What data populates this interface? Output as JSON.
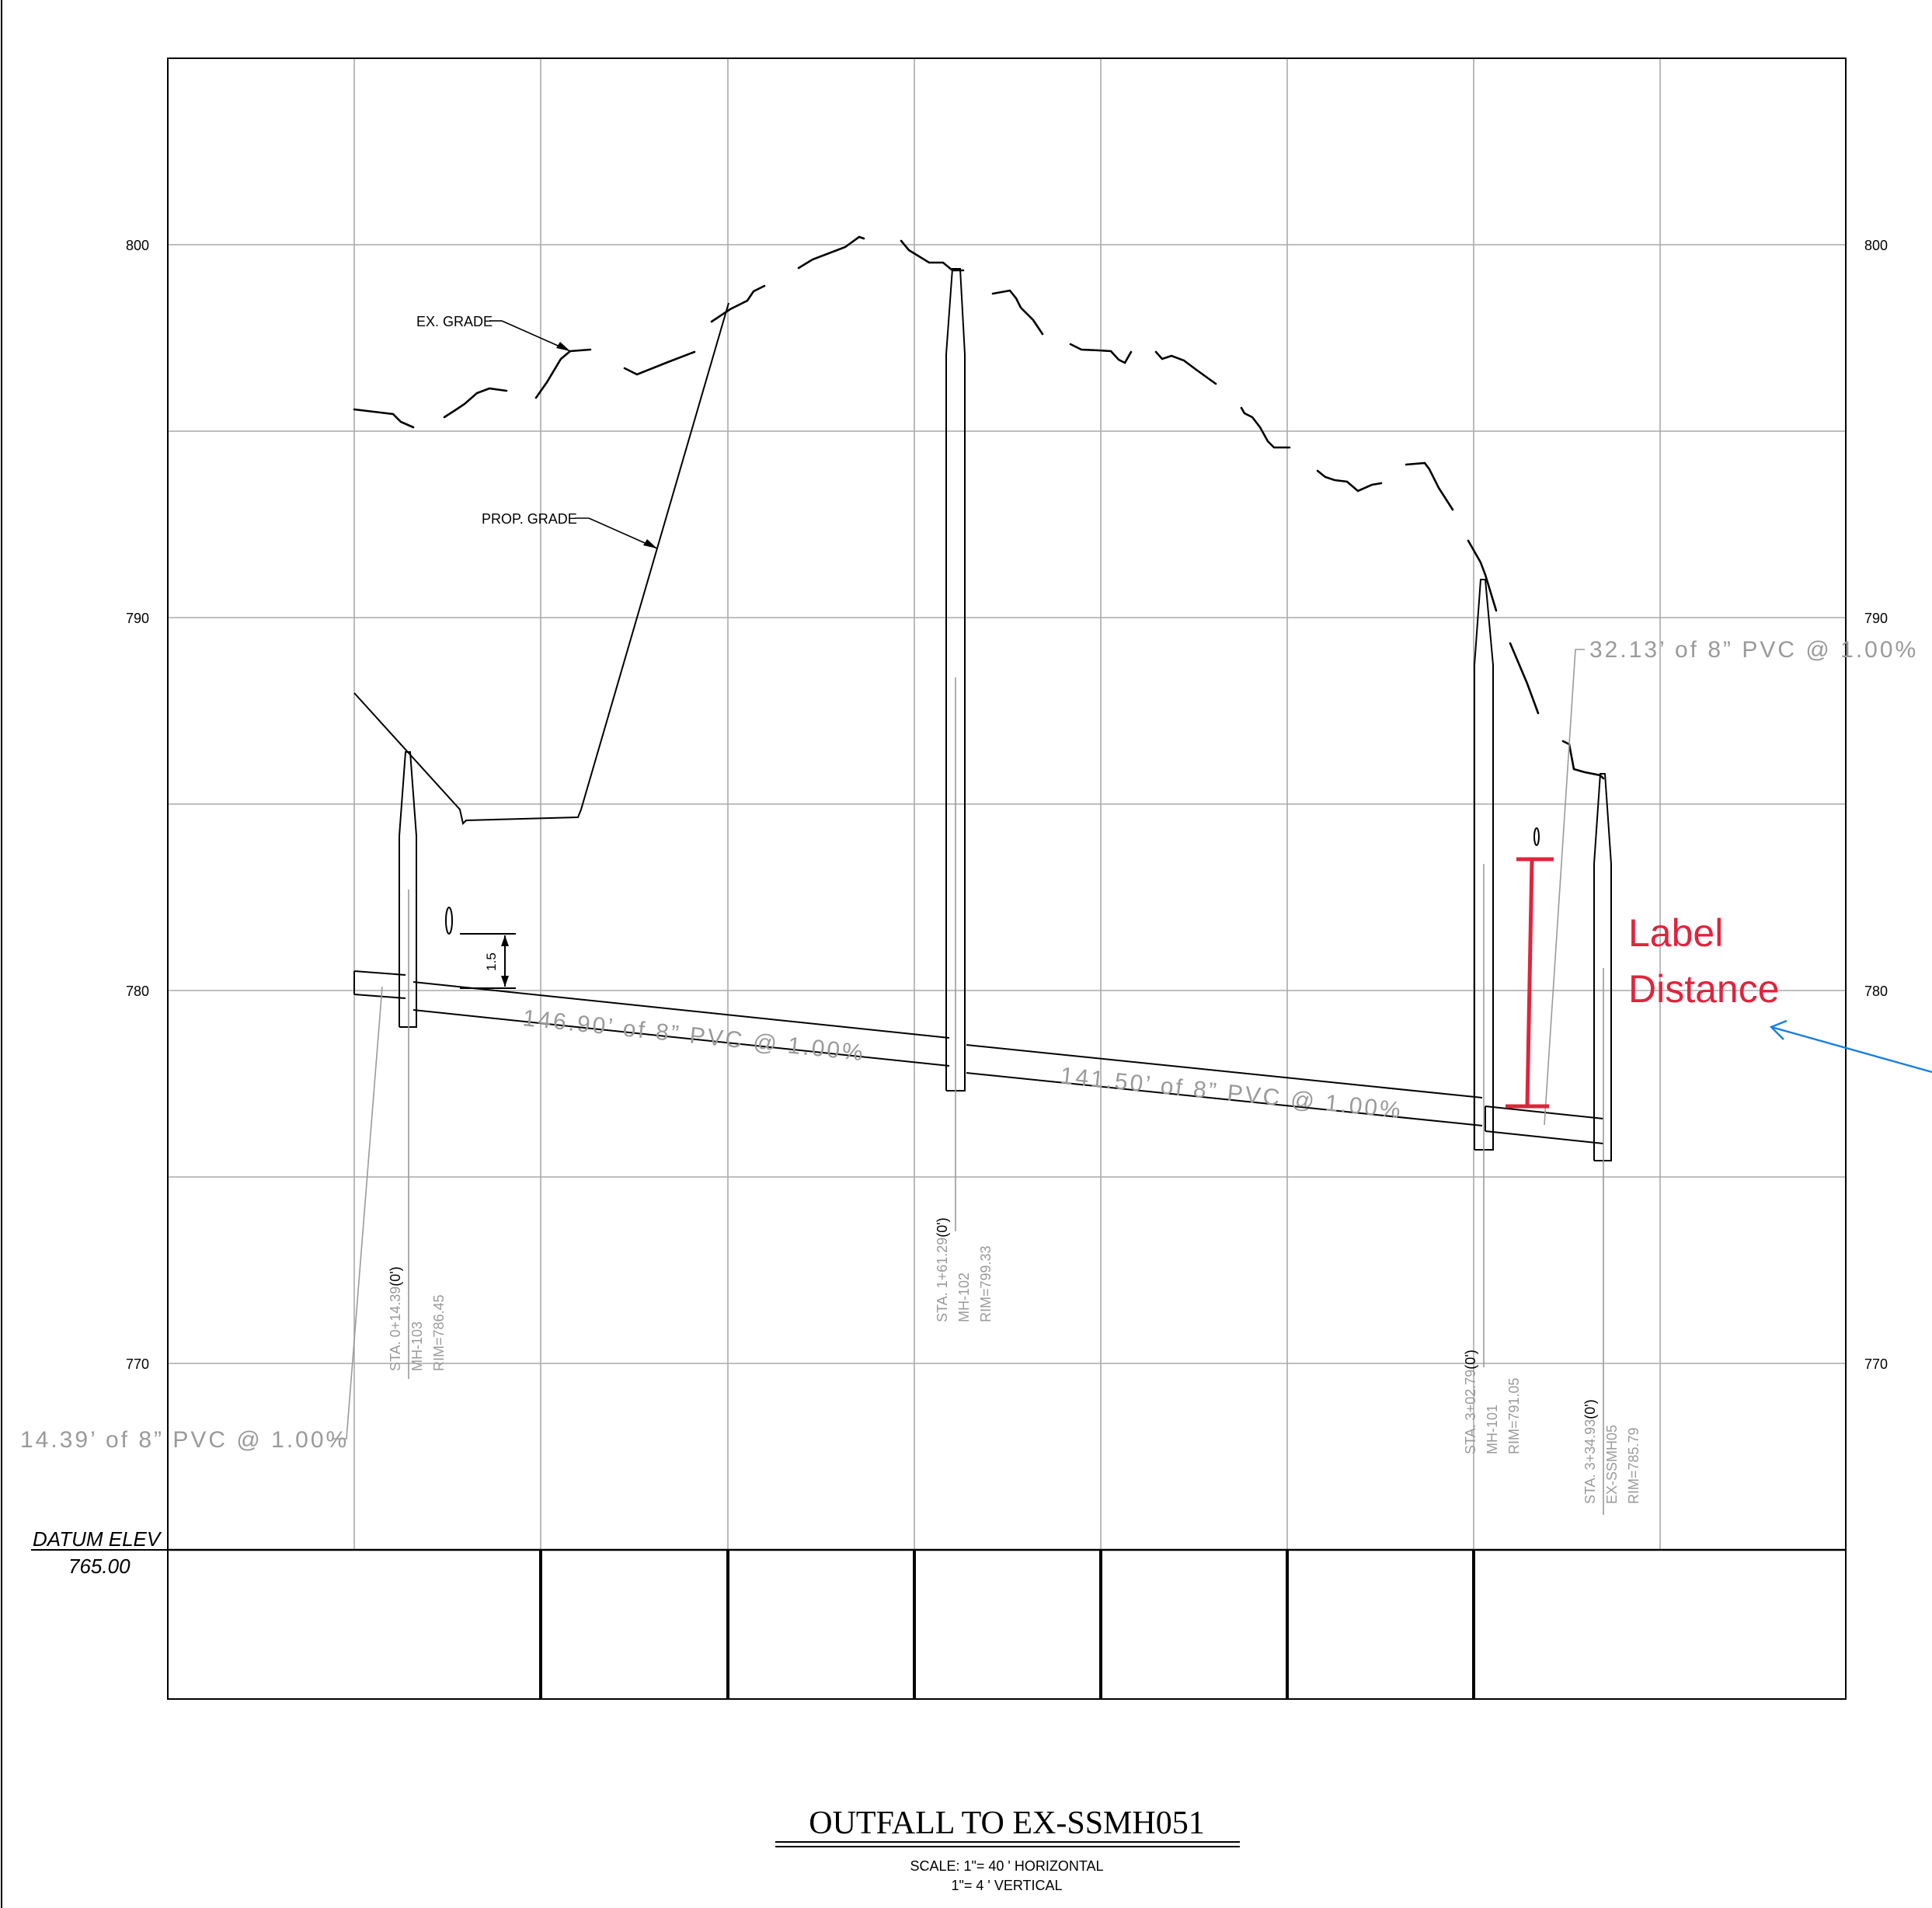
{
  "elevation_labels": [
    "800",
    "790",
    "780",
    "770"
  ],
  "datum": {
    "label": "DATUM ELEV",
    "value": "765.00"
  },
  "grade_labels": {
    "existing": "EX. GRADE",
    "proposed": "PROP. GRADE"
  },
  "pipe_labels": [
    "14.39’ of 8” PVC @ 1.00%",
    "146.90’ of 8” PVC @ 1.00%",
    "141.50’ of 8” PVC @ 1.00%",
    "32.13’ of 8” PVC @ 1.00%"
  ],
  "dimension_label": "1.5",
  "manholes": [
    {
      "station": "STA. 0+14.39",
      "offset": "(0')",
      "name": "MH-103",
      "rim": "RIM=786.45"
    },
    {
      "station": "STA. 1+61.29",
      "offset": "(0')",
      "name": "MH-102",
      "rim": "RIM=799.33"
    },
    {
      "station": "STA. 3+02.79",
      "offset": "(0')",
      "name": "MH-101",
      "rim": "RIM=791.05"
    },
    {
      "station": "STA. 3+34.93",
      "offset": "(0')",
      "name": "EX-SSMH05",
      "rim": "RIM=785.79"
    }
  ],
  "annotation": {
    "line1": "Label",
    "line2": "Distance",
    "color": "#e0243c",
    "arrow_color": "#1a7fe0"
  },
  "title": "OUTFALL TO EX-SSMH051",
  "scale_horizontal": "SCALE: 1\"= 40 ' HORIZONTAL",
  "scale_vertical": "1\"= 4 ' VERTICAL"
}
